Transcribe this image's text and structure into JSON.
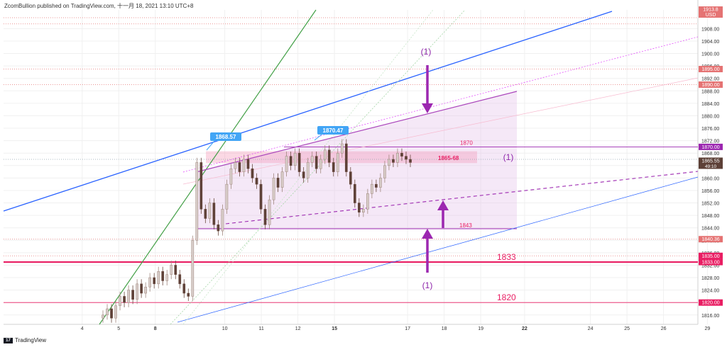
{
  "header": {
    "publisher": "ZcomBullion published on TradingView.com, 十一月 18, 2021 13:10 UTC+8"
  },
  "footer": {
    "brand": "TradingView",
    "logo_text": "17"
  },
  "chart_data": {
    "type": "candlestick",
    "symbol_price_top": "1913.8",
    "currency_label": "USD",
    "ylim": [
      1813,
      1914
    ],
    "y_ticks": [
      1908,
      1904,
      1900,
      1896,
      1892,
      1888,
      1884,
      1880,
      1876,
      1872,
      1868,
      1864,
      1860,
      1856,
      1852,
      1848,
      1844,
      1840,
      1836,
      1832,
      1828,
      1824,
      1820,
      1816
    ],
    "x_ticks": [
      {
        "label": "4",
        "i": -3.5
      },
      {
        "label": "5",
        "i": -2.5
      },
      {
        "label": "8",
        "i": -1.5
      },
      {
        "label": "10",
        "i": 0.4
      },
      {
        "label": "11",
        "i": 1.4
      },
      {
        "label": "12",
        "i": 2.4
      },
      {
        "label": "15",
        "i": 3.4
      },
      {
        "label": "17",
        "i": 5.4
      },
      {
        "label": "18",
        "i": 6.4
      },
      {
        "label": "19",
        "i": 7.4
      },
      {
        "label": "22",
        "i": 8.6
      },
      {
        "label": "24",
        "i": 10.4
      },
      {
        "label": "25",
        "i": 11.4
      },
      {
        "label": "26",
        "i": 12.4
      },
      {
        "label": "29",
        "i": 13.6
      }
    ],
    "price_tags": [
      {
        "value": 1895.0,
        "text": "1895.00",
        "color": "#e57373"
      },
      {
        "value": 1890.0,
        "text": "1890.00",
        "color": "#e57373"
      },
      {
        "value": 1870.0,
        "text": "1870.00",
        "color": "#9c27b0"
      },
      {
        "value": 1865.55,
        "text": "1865.55",
        "sub": "49:10",
        "color": "#5d4037"
      },
      {
        "value": 1840.36,
        "text": "1840.36",
        "color": "#e57373"
      },
      {
        "value": 1835.0,
        "text": "1835.00",
        "color": "#e91e63"
      },
      {
        "value": 1833.0,
        "text": "1833.00",
        "color": "#e91e63"
      },
      {
        "value": 1820.0,
        "text": "1820.00",
        "color": "#e91e63"
      }
    ],
    "annotations": {
      "callout_1": "1868.57",
      "callout_2": "1870.47",
      "zone_label": "1865-68",
      "level_1870": "1870",
      "level_1843": "1843",
      "level_1833": "1833",
      "level_1820": "1820",
      "wave_top": "(1)",
      "wave_mid": "(1)",
      "wave_bottom": "(1)"
    },
    "candles_close": [
      1816,
      1818,
      1815,
      1819,
      1822,
      1820,
      1824,
      1821,
      1826,
      1823,
      1825,
      1828,
      1826,
      1830,
      1827,
      1829,
      1832,
      1829,
      1826,
      1823,
      1822,
      1840,
      1865,
      1850,
      1847,
      1852,
      1845,
      1843,
      1850,
      1858,
      1863,
      1865,
      1862,
      1866,
      1863,
      1860,
      1858,
      1850,
      1845,
      1853,
      1860,
      1857,
      1862,
      1867,
      1864,
      1868,
      1862,
      1860,
      1865,
      1867,
      1863,
      1866,
      1869,
      1865,
      1862,
      1868,
      1871,
      1862,
      1858,
      1852,
      1849,
      1850,
      1855,
      1858,
      1857,
      1860,
      1864,
      1866,
      1865,
      1868,
      1867,
      1866,
      1865
    ]
  }
}
